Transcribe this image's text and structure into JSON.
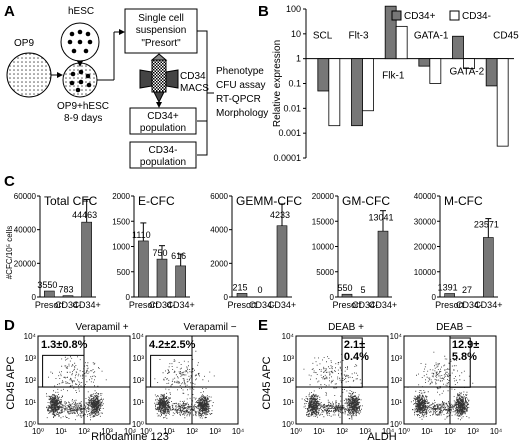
{
  "panels": {
    "a": "A",
    "b": "B",
    "c": "C",
    "d": "D",
    "e": "E"
  },
  "panel_a": {
    "op9": "OP9",
    "hesc": "hESC",
    "coculture": "OP9+hESC",
    "days": "8-9 days",
    "single_cell_line1": "Single cell",
    "single_cell_line2": "suspension",
    "single_cell_line3": "\"Presort\"",
    "macs_line1": "CD34",
    "macs_line2": "MACS",
    "cd34pos_line1": "CD34+",
    "cd34pos_line2": "population",
    "cd34neg_line1": "CD34-",
    "cd34neg_line2": "population",
    "assays": [
      "Phenotype",
      "CFU assay",
      "RT-QPCR",
      "Morphology"
    ]
  },
  "chart_data": [
    {
      "panel": "B",
      "type": "bar",
      "ylabel": "Relative expression",
      "yscale": "log",
      "ylim": [
        0.0001,
        100
      ],
      "yticks": [
        "100",
        "10",
        "1",
        "0.1",
        "0.01",
        "0.001",
        "0.0001"
      ],
      "categories": [
        "SCL",
        "Flt-3",
        "Flk-1",
        "GATA-1",
        "GATA-2",
        "CD45"
      ],
      "series": [
        {
          "name": "CD34+",
          "color": "#777777",
          "values": [
            0.05,
            0.002,
            130,
            0.5,
            8,
            0.08
          ]
        },
        {
          "name": "CD34-",
          "color": "#ffffff",
          "values": [
            0.002,
            0.008,
            20,
            0.1,
            0.4,
            0.0003
          ]
        }
      ]
    },
    {
      "panel": "C",
      "type": "bar",
      "ylabel": "#CFC/10⁵ cells",
      "subplots": [
        {
          "title": "Total CFC",
          "yticks": [
            "0",
            "20000",
            "40000",
            "60000"
          ],
          "ylim": [
            0,
            60000
          ],
          "categories": [
            "Presort",
            "CD34-",
            "CD34+"
          ],
          "values": [
            3550,
            783,
            44463
          ],
          "labels": [
            "3550",
            "783",
            "44463"
          ]
        },
        {
          "title": "E-CFC",
          "yticks": [
            "0",
            "500",
            "1000",
            "1500",
            "2000"
          ],
          "ylim": [
            0,
            2000
          ],
          "categories": [
            "Presort",
            "CD34-",
            "CD34+"
          ],
          "values": [
            1110,
            750,
            616
          ],
          "labels": [
            "1110",
            "750",
            "616"
          ]
        },
        {
          "title": "GEMM-CFC",
          "yticks": [
            "0",
            "2000",
            "4000",
            "6000"
          ],
          "ylim": [
            0,
            6000
          ],
          "categories": [
            "Presort",
            "CD34-",
            "CD34+"
          ],
          "values": [
            215,
            0,
            4233
          ],
          "labels": [
            "215",
            "0",
            "4233"
          ]
        },
        {
          "title": "GM-CFC",
          "yticks": [
            "0",
            "5000",
            "10000",
            "15000",
            "20000"
          ],
          "ylim": [
            0,
            20000
          ],
          "categories": [
            "Presort",
            "CD34-",
            "CD34+"
          ],
          "values": [
            550,
            5,
            13041
          ],
          "labels": [
            "550",
            "5",
            "13041"
          ]
        },
        {
          "title": "M-CFC",
          "yticks": [
            "0",
            "10000",
            "20000",
            "30000",
            "40000"
          ],
          "ylim": [
            0,
            40000
          ],
          "categories": [
            "Presort",
            "CD34-",
            "CD34+"
          ],
          "values": [
            1391,
            27,
            23571
          ],
          "labels": [
            "1391",
            "27",
            "23571"
          ]
        }
      ]
    }
  ],
  "panel_d": {
    "ylabel": "CD45 APC",
    "xlabel": "Rhodamine 123",
    "plots": [
      {
        "title": "Verapamil  +",
        "gate": "1.3±0.8%"
      },
      {
        "title": "Verapamil  −",
        "gate": "4.2±2.5%"
      }
    ]
  },
  "panel_e": {
    "ylabel": "CD45 APC",
    "xlabel": "ALDH",
    "plots": [
      {
        "title": "DEAB +",
        "gate_line1": "2.1±",
        "gate_line2": "0.4%"
      },
      {
        "title": "DEAB −",
        "gate_line1": "12.9±",
        "gate_line2": "5.8%"
      }
    ]
  },
  "flow_ticks": [
    "10⁰",
    "10¹",
    "10²",
    "10³",
    "10⁴"
  ]
}
